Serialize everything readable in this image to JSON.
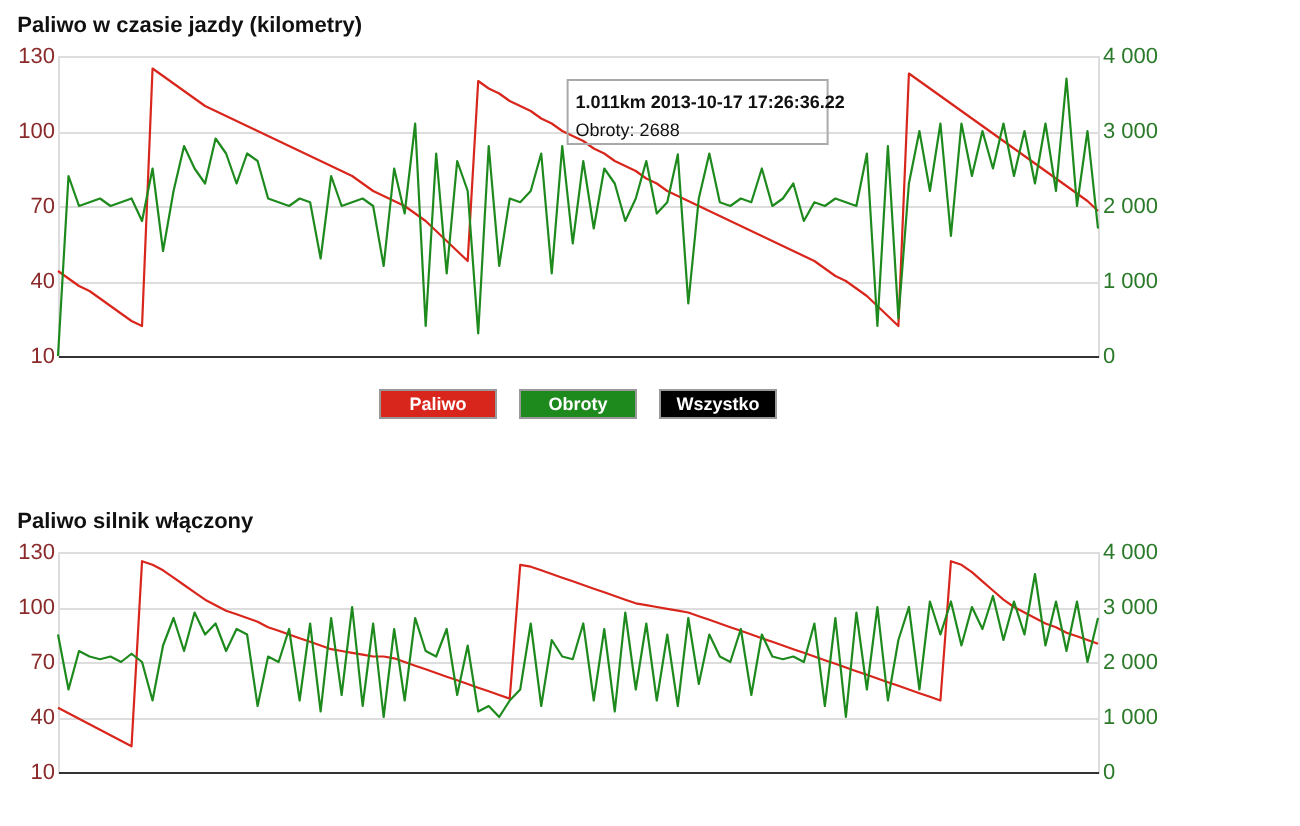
{
  "chart_data": [
    {
      "type": "line",
      "title": "Paliwo w czasie jazdy (kilometry)",
      "categories": [
        null,
        null,
        null,
        null,
        null,
        null,
        null,
        null,
        null,
        null,
        null,
        null,
        null,
        null,
        null,
        null,
        null,
        null,
        null,
        null,
        null,
        null,
        null,
        null,
        null,
        null,
        null,
        null,
        null,
        null,
        null,
        null,
        null,
        null,
        null,
        null,
        null,
        null,
        null,
        null,
        null,
        null,
        null,
        null,
        null,
        null,
        null,
        null,
        null,
        null,
        null,
        null,
        null,
        null,
        null,
        null,
        null,
        null,
        null,
        null,
        null,
        null,
        null,
        null,
        null,
        null,
        null,
        null,
        null,
        null,
        null,
        null,
        null,
        null,
        null,
        null,
        null,
        null,
        null,
        null,
        null,
        null,
        null,
        null,
        null,
        null,
        null,
        null,
        null,
        null,
        null,
        null,
        null,
        null,
        null,
        null,
        null,
        null,
        null,
        null
      ],
      "series": [
        {
          "name": "Paliwo",
          "color": "#d9261c",
          "values": [
            44,
            41,
            38,
            36,
            33,
            30,
            27,
            24,
            22,
            125,
            122,
            119,
            116,
            113,
            110,
            108,
            106,
            104,
            102,
            100,
            98,
            96,
            94,
            92,
            90,
            88,
            86,
            84,
            82,
            79,
            76,
            74,
            72,
            70,
            67,
            64,
            60,
            56,
            52,
            48,
            120,
            117,
            115,
            112,
            110,
            108,
            105,
            103,
            100,
            98,
            96,
            93,
            91,
            88,
            86,
            84,
            81,
            79,
            76,
            74,
            72,
            70,
            68,
            66,
            64,
            62,
            60,
            58,
            56,
            54,
            52,
            50,
            48,
            45,
            42,
            40,
            37,
            34,
            30,
            26,
            22,
            123,
            120,
            117,
            114,
            111,
            108,
            105,
            102,
            99,
            96,
            93,
            90,
            87,
            84,
            81,
            78,
            75,
            72,
            68
          ]
        },
        {
          "name": "Obroty",
          "color": "#1e8a1e",
          "axis": "y2",
          "values": [
            0,
            2400,
            2000,
            2050,
            2100,
            2000,
            2050,
            2100,
            1800,
            2500,
            1400,
            2200,
            2800,
            2500,
            2300,
            2900,
            2700,
            2300,
            2700,
            2600,
            2100,
            2050,
            2000,
            2100,
            2050,
            1300,
            2400,
            2000,
            2050,
            2100,
            2000,
            1200,
            2500,
            1900,
            3100,
            400,
            2700,
            1100,
            2600,
            2200,
            300,
            2800,
            1200,
            2100,
            2050,
            2200,
            2700,
            1100,
            2800,
            1500,
            2600,
            1700,
            2500,
            2300,
            1800,
            2100,
            2600,
            1900,
            2050,
            2688,
            700,
            2100,
            2700,
            2050,
            2000,
            2100,
            2050,
            2500,
            2000,
            2100,
            2300,
            1800,
            2050,
            2000,
            2100,
            2050,
            2000,
            2700,
            400,
            2800,
            500,
            2300,
            3000,
            2200,
            3100,
            1600,
            3100,
            2400,
            3000,
            2500,
            3100,
            2400,
            3000,
            2300,
            3100,
            2200,
            3700,
            2000,
            3000,
            1700
          ]
        }
      ],
      "ylim": [
        10,
        130
      ],
      "yticks": [
        10,
        40,
        70,
        100,
        130
      ],
      "y2lim": [
        0,
        4000
      ],
      "y2ticks": [
        0,
        {
          "value": 1000,
          "label": "1 000"
        },
        {
          "value": 2000,
          "label": "2 000"
        },
        {
          "value": 3000,
          "label": "3 000"
        },
        {
          "value": 4000,
          "label": "4 000"
        }
      ],
      "tick_labels": "y",
      "grid": "y",
      "legend": "bottom",
      "line_style": "solid",
      "annotations": [
        "1.011km 2013-10-17 17:26:36.22",
        "Obroty: 2688",
        "Wszystko"
      ]
    },
    {
      "type": "line",
      "title": "Paliwo silnik włączony",
      "categories": [
        null,
        null,
        null,
        null,
        null,
        null,
        null,
        null,
        null,
        null,
        null,
        null,
        null,
        null,
        null,
        null,
        null,
        null,
        null,
        null,
        null,
        null,
        null,
        null,
        null,
        null,
        null,
        null,
        null,
        null,
        null,
        null,
        null,
        null,
        null,
        null,
        null,
        null,
        null,
        null,
        null,
        null,
        null,
        null,
        null,
        null,
        null,
        null,
        null,
        null,
        null,
        null,
        null,
        null,
        null,
        null,
        null,
        null,
        null,
        null,
        null,
        null,
        null,
        null,
        null,
        null,
        null,
        null,
        null,
        null,
        null,
        null,
        null,
        null,
        null,
        null,
        null,
        null,
        null,
        null,
        null,
        null,
        null,
        null,
        null,
        null,
        null,
        null,
        null,
        null,
        null,
        null,
        null,
        null,
        null,
        null,
        null,
        null,
        null,
        null
      ],
      "series": [
        {
          "color": "#d9261c",
          "values": [
            45,
            42,
            39,
            36,
            33,
            30,
            27,
            24,
            125,
            123,
            120,
            116,
            112,
            108,
            104,
            101,
            98,
            96,
            94,
            92,
            89,
            87,
            85,
            83,
            81,
            79,
            77,
            76,
            75,
            74,
            73,
            73,
            72,
            70,
            68,
            66,
            64,
            62,
            60,
            58,
            56,
            54,
            52,
            50,
            123,
            122,
            120,
            118,
            116,
            114,
            112,
            110,
            108,
            106,
            104,
            102,
            101,
            100,
            99,
            98,
            97,
            95,
            93,
            91,
            89,
            87,
            85,
            83,
            81,
            79,
            77,
            75,
            73,
            71,
            69,
            67,
            65,
            63,
            61,
            59,
            57,
            55,
            53,
            51,
            49,
            125,
            123,
            119,
            114,
            109,
            104,
            100,
            97,
            94,
            91,
            89,
            86,
            84,
            82,
            80
          ]
        },
        {
          "color": "#1e8a1e",
          "axis": "y2",
          "values": [
            2500,
            1500,
            2200,
            2100,
            2050,
            2100,
            2000,
            2150,
            2000,
            1300,
            2300,
            2800,
            2200,
            2900,
            2500,
            2700,
            2200,
            2600,
            2500,
            1200,
            2100,
            2000,
            2600,
            1300,
            2700,
            1100,
            2800,
            1400,
            3000,
            1200,
            2700,
            1000,
            2600,
            1300,
            2800,
            2200,
            2100,
            2600,
            1400,
            2300,
            1100,
            1200,
            1000,
            1300,
            1500,
            2700,
            1200,
            2400,
            2100,
            2050,
            2700,
            1300,
            2600,
            1100,
            2900,
            1500,
            2700,
            1300,
            2500,
            1200,
            2800,
            1600,
            2500,
            2100,
            2000,
            2600,
            1400,
            2500,
            2100,
            2050,
            2100,
            2000,
            2700,
            1200,
            2800,
            1000,
            2900,
            1500,
            3000,
            1300,
            2400,
            3000,
            1500,
            3100,
            2500,
            3100,
            2300,
            3000,
            2600,
            3200,
            2400,
            3100,
            2500,
            3600,
            2300,
            3100,
            2200,
            3100,
            2000,
            2800
          ]
        }
      ],
      "ylim": [
        10,
        130
      ],
      "yticks": [
        10,
        40,
        70,
        100,
        130
      ],
      "y2lim": [
        0,
        4000
      ],
      "y2ticks": [
        0,
        {
          "value": 1000,
          "label": "1 000"
        },
        {
          "value": 2000,
          "label": "2 000"
        },
        {
          "value": 3000,
          "label": "3 000"
        },
        {
          "value": 4000,
          "label": "4 000"
        }
      ],
      "tick_labels": "y",
      "grid": "y",
      "line_style": "solid"
    }
  ]
}
